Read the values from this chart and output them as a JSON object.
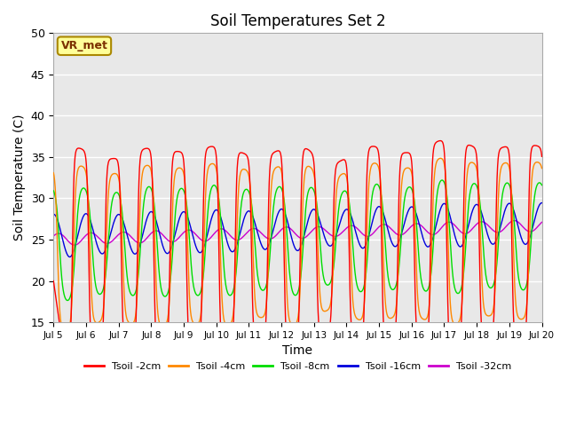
{
  "title": "Soil Temperatures Set 2",
  "xlabel": "Time",
  "ylabel": "Soil Temperature (C)",
  "ylim": [
    15,
    50
  ],
  "xlim_days": [
    5,
    20
  ],
  "x_ticks": [
    5,
    6,
    7,
    8,
    9,
    10,
    11,
    12,
    13,
    14,
    15,
    16,
    17,
    18,
    19,
    20
  ],
  "x_tick_labels": [
    "Jul 5",
    "Jul 6",
    "Jul 7",
    "Jul 8",
    "Jul 9",
    "Jul 10",
    "Jul 11",
    "Jul 12",
    "Jul 13",
    "Jul 14",
    "Jul 15",
    "Jul 16",
    "Jul 17",
    "Jul 18",
    "Jul 19",
    "Jul 20"
  ],
  "y_ticks": [
    15,
    20,
    25,
    30,
    35,
    40,
    45,
    50
  ],
  "colors": {
    "2cm": "#ff0000",
    "4cm": "#ff8800",
    "8cm": "#00dd00",
    "16cm": "#0000dd",
    "32cm": "#cc00cc"
  },
  "labels": [
    "Tsoil -2cm",
    "Tsoil -4cm",
    "Tsoil -8cm",
    "Tsoil -16cm",
    "Tsoil -32cm"
  ],
  "vr_met_label": "VR_met",
  "background_color": "#e8e8e8",
  "figure_bg": "#ffffff",
  "legend_line_colors": [
    "#ff0000",
    "#ff8800",
    "#00dd00",
    "#0000dd",
    "#cc00cc"
  ],
  "mean_all": 25.5,
  "amp_2cm": 12.0,
  "amp_4cm": 9.5,
  "amp_8cm": 6.5,
  "amp_16cm": 2.5,
  "amp_32cm": 0.7,
  "phase_lag_4cm": 0.06,
  "phase_lag_8cm": 0.15,
  "phase_lag_16cm": 0.3,
  "phase_lag_32cm": 0.5,
  "sharpness_2cm": 3.0,
  "sharpness_4cm": 2.2,
  "sharpness_8cm": 1.3,
  "mean_drift_2cm": [
    23.5,
    24.5
  ],
  "mean_drift_4cm": [
    24.0,
    25.0
  ],
  "mean_drift_8cm": [
    24.5,
    25.5
  ],
  "mean_drift_16cm": [
    25.5,
    27.0
  ],
  "mean_drift_32cm": [
    25.0,
    26.7
  ]
}
